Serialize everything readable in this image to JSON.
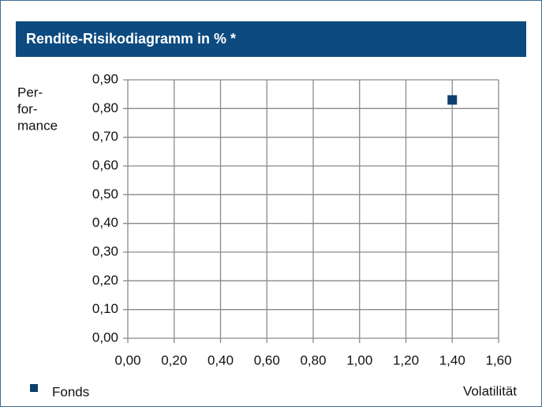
{
  "chart_data": {
    "type": "scatter",
    "title": "Rendite-Risikodiagramm in % *",
    "ylabel": [
      "Per-",
      "for-",
      "mance"
    ],
    "xlabel": "Volatilität",
    "series": [
      {
        "name": "Fonds",
        "color": "#0e3f6e",
        "x": [
          1.4
        ],
        "values": [
          0.83
        ]
      }
    ],
    "xlim": [
      0,
      1.6
    ],
    "xticks": [
      {
        "value": 0,
        "label": "0,00"
      },
      {
        "value": 0.2,
        "label": "0,20"
      },
      {
        "value": 0.4,
        "label": "0,40"
      },
      {
        "value": 0.6,
        "label": "0,60"
      },
      {
        "value": 0.8,
        "label": "0,80"
      },
      {
        "value": 1.0,
        "label": "1,00"
      },
      {
        "value": 1.2,
        "label": "1,20"
      },
      {
        "value": 1.4,
        "label": "1,40"
      },
      {
        "value": 1.6,
        "label": "1,60"
      }
    ],
    "ylim": [
      0,
      0.9
    ],
    "yticks": [
      {
        "value": 0,
        "label": "0,00"
      },
      {
        "value": 0.1,
        "label": "0,10"
      },
      {
        "value": 0.2,
        "label": "0,20"
      },
      {
        "value": 0.3,
        "label": "0,30"
      },
      {
        "value": 0.4,
        "label": "0,40"
      },
      {
        "value": 0.5,
        "label": "0,50"
      },
      {
        "value": 0.6,
        "label": "0,60"
      },
      {
        "value": 0.7,
        "label": "0,70"
      },
      {
        "value": 0.8,
        "label": "0,80"
      },
      {
        "value": 0.9,
        "label": "0,90"
      }
    ],
    "grid": true
  }
}
